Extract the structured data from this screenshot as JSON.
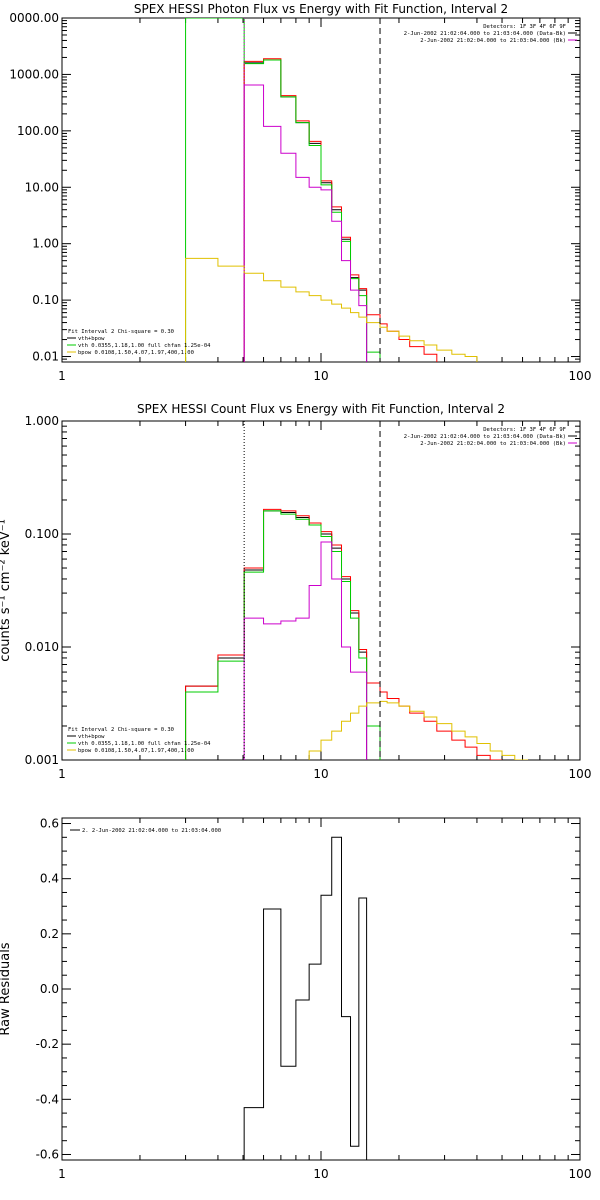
{
  "colors": {
    "data": "#000000",
    "bk": "#ff0000",
    "vth_bpow": "#000000",
    "vth": "#00cc00",
    "bpow": "#e0c000",
    "bk_alt": "#cc00cc"
  },
  "chart_data": [
    {
      "type": "line",
      "title": "SPEX HESSI Photon Flux vs Energy with Fit Function, Interval 2",
      "xscale": "log",
      "yscale": "log",
      "xlim": [
        1,
        100
      ],
      "ylim": [
        0.008,
        10000
      ],
      "xticks": [
        {
          "v": 1,
          "t": "1"
        },
        {
          "v": 10,
          "t": "10"
        },
        {
          "v": 100,
          "t": "100"
        }
      ],
      "yticks": [
        {
          "v": 10000,
          "t": "0000.00"
        },
        {
          "v": 1000,
          "t": "1000.00"
        },
        {
          "v": 100,
          "t": "100.00"
        },
        {
          "v": 10,
          "t": "10.00"
        },
        {
          "v": 1,
          "t": "1.00"
        },
        {
          "v": 0.1,
          "t": "0.10"
        },
        {
          "v": 0.01,
          "t": "0.01"
        }
      ],
      "vlines": [
        {
          "x": 5.05,
          "style": "dotted",
          "color": "#cc00cc"
        },
        {
          "x": 16.9,
          "style": "dashed",
          "color": "#000000"
        }
      ],
      "legend_top": [
        "Detectors: 1F 3F 4F 6F 9F",
        "2-Jun-2002 21:02:04.000 to 21:03:04.000 (Data-Bk)",
        "2-Jun-2002 21:02:04.000 to 21:03:04.000 (Bk)"
      ],
      "legend_top_colors": [
        "",
        "#000000",
        "#cc00cc"
      ],
      "legend_bottom": [
        "Fit Interval 2   Chi-square = 0.30",
        "vth+bpow",
        "vth 0.0355,1.18,1.00  full chfan 1.25e-04",
        "bpow 0.0108,1.50,4.07,1.97,400,1.00"
      ],
      "legend_bottom_colors": [
        "",
        "#000000",
        "#00cc00",
        "#e0c000"
      ],
      "edges": [
        3.0,
        4.0,
        5.05,
        6.0,
        7.0,
        8.0,
        9.0,
        10.0,
        11.0,
        12.0,
        13.0,
        14.0,
        15.0,
        16.9,
        18.0,
        20.0,
        22.0,
        25.0,
        28.0,
        32.0,
        36.0,
        40.0
      ],
      "series": [
        {
          "name": "vth+bpow",
          "color": "#000000",
          "values": [
            null,
            null,
            1600,
            1800,
            400,
            140,
            60,
            12,
            4.0,
            1.2,
            0.25,
            0.15,
            null,
            null,
            null,
            null,
            null,
            null,
            null,
            null,
            null
          ]
        },
        {
          "name": "bk",
          "color": "#ff0000",
          "values": [
            null,
            null,
            1700,
            1900,
            420,
            150,
            65,
            13,
            4.5,
            1.3,
            0.28,
            0.16,
            0.055,
            0.038,
            0.028,
            0.02,
            0.015,
            0.011,
            null,
            null,
            null
          ]
        },
        {
          "name": "vth",
          "color": "#00cc00",
          "values": [
            10000,
            10000,
            1550,
            1800,
            400,
            140,
            55,
            11,
            3.6,
            1.1,
            0.24,
            0.12,
            0.012,
            null,
            null,
            null,
            null,
            null,
            null,
            null,
            null
          ]
        },
        {
          "name": "bk_alt",
          "color": "#cc00cc",
          "values": [
            null,
            null,
            650,
            120,
            40,
            15,
            10,
            9,
            2.5,
            0.5,
            0.15,
            0.08,
            null,
            null,
            null,
            null,
            null,
            null,
            null,
            null,
            null
          ]
        },
        {
          "name": "bpow",
          "color": "#e0c000",
          "values": [
            0.55,
            0.4,
            0.3,
            0.22,
            0.17,
            0.14,
            0.12,
            0.1,
            0.085,
            0.072,
            0.06,
            0.05,
            0.04,
            0.033,
            0.028,
            0.023,
            0.019,
            0.016,
            0.013,
            0.011,
            0.01
          ]
        }
      ]
    },
    {
      "type": "line",
      "title": "SPEX HESSI Count Flux vs Energy with Fit Function, Interval 2",
      "xscale": "log",
      "yscale": "log",
      "xlim": [
        1,
        100
      ],
      "ylim": [
        0.001,
        1.0
      ],
      "xticks": [
        {
          "v": 1,
          "t": "1"
        },
        {
          "v": 10,
          "t": "10"
        },
        {
          "v": 100,
          "t": "100"
        }
      ],
      "yticks": [
        {
          "v": 1,
          "t": "1.000"
        },
        {
          "v": 0.1,
          "t": "0.100"
        },
        {
          "v": 0.01,
          "t": "0.010"
        },
        {
          "v": 0.001,
          "t": "0.001"
        }
      ],
      "vlines": [
        {
          "x": 5.05,
          "style": "dotted",
          "color": "#000000"
        },
        {
          "x": 16.9,
          "style": "dashed",
          "color": "#000000"
        }
      ],
      "legend_top": [
        "Detectors: 1F 3F 4F 6F 9F",
        "2-Jun-2002 21:02:04.000 to 21:03:04.000 (Data-Bk)",
        "2-Jun-2002 21:02:04.000 to 21:03:04.000 (Bk)"
      ],
      "legend_top_colors": [
        "",
        "#000000",
        "#cc00cc"
      ],
      "legend_bottom": [
        "Fit Interval 2   Chi-square = 0.30",
        "vth+bpow",
        "vth 0.0355,1.18,1.00  full chfan 1.25e-04",
        "bpow 0.0108,1.50,4.07,1.97,400,1.00"
      ],
      "legend_bottom_colors": [
        "",
        "#000000",
        "#00cc00",
        "#e0c000"
      ],
      "ylabel": "counts s⁻¹ cm⁻² keV⁻¹",
      "edges": [
        3.0,
        4.0,
        5.05,
        6.0,
        7.0,
        8.0,
        9.0,
        10.0,
        11.0,
        12.0,
        13.0,
        14.0,
        15.0,
        16.9,
        18.0,
        20.0,
        22.0,
        25.0,
        28.0,
        32.0,
        36.0,
        40.0,
        45.0,
        50.0,
        56.0,
        63.0
      ],
      "series": [
        {
          "name": "vth+bpow",
          "color": "#000000",
          "values": [
            0.0045,
            0.008,
            0.048,
            0.16,
            0.155,
            0.14,
            0.12,
            0.1,
            0.075,
            0.04,
            0.02,
            0.009,
            null,
            null,
            null,
            null,
            null,
            null,
            null,
            null,
            null,
            null,
            null,
            null,
            null
          ]
        },
        {
          "name": "bk",
          "color": "#ff0000",
          "values": [
            0.0045,
            0.0085,
            0.05,
            0.165,
            0.16,
            0.145,
            0.125,
            0.105,
            0.08,
            0.042,
            0.021,
            0.0095,
            0.0048,
            0.004,
            0.0035,
            0.003,
            0.0026,
            0.0022,
            0.0018,
            0.0015,
            0.0013,
            0.0011,
            0.001,
            null,
            null
          ]
        },
        {
          "name": "vth",
          "color": "#00cc00",
          "values": [
            0.004,
            0.0075,
            0.046,
            0.16,
            0.15,
            0.135,
            0.12,
            0.095,
            0.07,
            0.038,
            0.018,
            0.008,
            0.002,
            null,
            null,
            null,
            null,
            null,
            null,
            null,
            null,
            null,
            null,
            null,
            null
          ]
        },
        {
          "name": "bk_alt",
          "color": "#cc00cc",
          "values": [
            null,
            null,
            0.018,
            0.016,
            0.017,
            0.018,
            0.035,
            0.085,
            0.04,
            0.01,
            0.006,
            0.006,
            null,
            null,
            null,
            null,
            null,
            null,
            null,
            null,
            null,
            null,
            null,
            null,
            null
          ]
        },
        {
          "name": "bpow",
          "color": "#e0c000",
          "values": [
            null,
            null,
            null,
            null,
            null,
            null,
            0.0012,
            0.0015,
            0.0018,
            0.0022,
            0.0026,
            0.003,
            0.0032,
            0.0033,
            0.0032,
            0.003,
            0.0027,
            0.0024,
            0.0021,
            0.0018,
            0.0016,
            0.0014,
            0.0012,
            0.0011,
            0.001
          ]
        }
      ]
    },
    {
      "type": "line",
      "title": "",
      "xscale": "log",
      "yscale": "linear",
      "xlim": [
        1,
        100
      ],
      "ylim": [
        -0.62,
        0.62
      ],
      "xticks": [
        {
          "v": 1,
          "t": "1"
        },
        {
          "v": 10,
          "t": "10"
        },
        {
          "v": 100,
          "t": "100"
        }
      ],
      "yticks": [
        {
          "v": 0.6,
          "t": "0.6"
        },
        {
          "v": 0.4,
          "t": "0.4"
        },
        {
          "v": 0.2,
          "t": "0.2"
        },
        {
          "v": 0.0,
          "t": "0.0"
        },
        {
          "v": -0.2,
          "t": "-0.2"
        },
        {
          "v": -0.4,
          "t": "-0.4"
        },
        {
          "v": -0.6,
          "t": "-0.6"
        }
      ],
      "ylabel": "Raw Residuals",
      "legend_top": [
        "2.  2-Jun-2002 21:02:04.000 to 21:03:04.000"
      ],
      "edges": [
        5.05,
        6.0,
        7.0,
        8.0,
        9.0,
        10.0,
        11.0,
        12.0,
        13.0,
        14.0,
        15.0,
        16.9
      ],
      "series": [
        {
          "name": "residuals",
          "color": "#000000",
          "values": [
            -0.43,
            0.29,
            -0.28,
            -0.04,
            0.09,
            0.34,
            0.55,
            -0.1,
            -0.57,
            0.33,
            null
          ]
        }
      ]
    }
  ]
}
